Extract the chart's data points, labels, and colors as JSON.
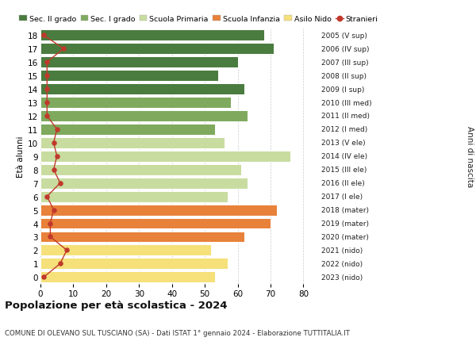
{
  "ages": [
    0,
    1,
    2,
    3,
    4,
    5,
    6,
    7,
    8,
    9,
    10,
    11,
    12,
    13,
    14,
    15,
    16,
    17,
    18
  ],
  "bar_values": [
    53,
    57,
    52,
    62,
    70,
    72,
    57,
    63,
    61,
    76,
    56,
    53,
    63,
    58,
    62,
    54,
    60,
    71,
    68
  ],
  "stranieri": [
    1,
    6,
    8,
    3,
    3,
    4,
    2,
    6,
    4,
    5,
    4,
    5,
    2,
    2,
    2,
    2,
    2,
    7,
    1
  ],
  "right_labels": [
    "2023 (nido)",
    "2022 (nido)",
    "2021 (nido)",
    "2020 (mater)",
    "2019 (mater)",
    "2018 (mater)",
    "2017 (I ele)",
    "2016 (II ele)",
    "2015 (III ele)",
    "2014 (IV ele)",
    "2013 (V ele)",
    "2012 (I med)",
    "2011 (II med)",
    "2010 (III med)",
    "2009 (I sup)",
    "2008 (II sup)",
    "2007 (III sup)",
    "2006 (IV sup)",
    "2005 (V sup)"
  ],
  "bar_colors": [
    "#f5e07a",
    "#f5e07a",
    "#f5e07a",
    "#e8813a",
    "#e8813a",
    "#e8813a",
    "#c8dca0",
    "#c8dca0",
    "#c8dca0",
    "#c8dca0",
    "#c8dca0",
    "#7faa5e",
    "#7faa5e",
    "#7faa5e",
    "#4a7c3f",
    "#4a7c3f",
    "#4a7c3f",
    "#4a7c3f",
    "#4a7c3f"
  ],
  "legend_labels": [
    "Sec. II grado",
    "Sec. I grado",
    "Scuola Primaria",
    "Scuola Infanzia",
    "Asilo Nido",
    "Stranieri"
  ],
  "legend_colors": [
    "#4a7c3f",
    "#7faa5e",
    "#c8dca0",
    "#e8813a",
    "#f5e07a",
    "#c0392b"
  ],
  "title": "Popolazione per età scolastica - 2024",
  "subtitle": "COMUNE DI OLEVANO SUL TUSCIANO (SA) - Dati ISTAT 1° gennaio 2024 - Elaborazione TUTTITALIA.IT",
  "ylabel": "Età alunni",
  "right_ylabel": "Anni di nascita",
  "xlim_max": 84,
  "bg_color": "#ffffff",
  "grid_color": "#cccccc",
  "stranieri_color": "#c0392b"
}
